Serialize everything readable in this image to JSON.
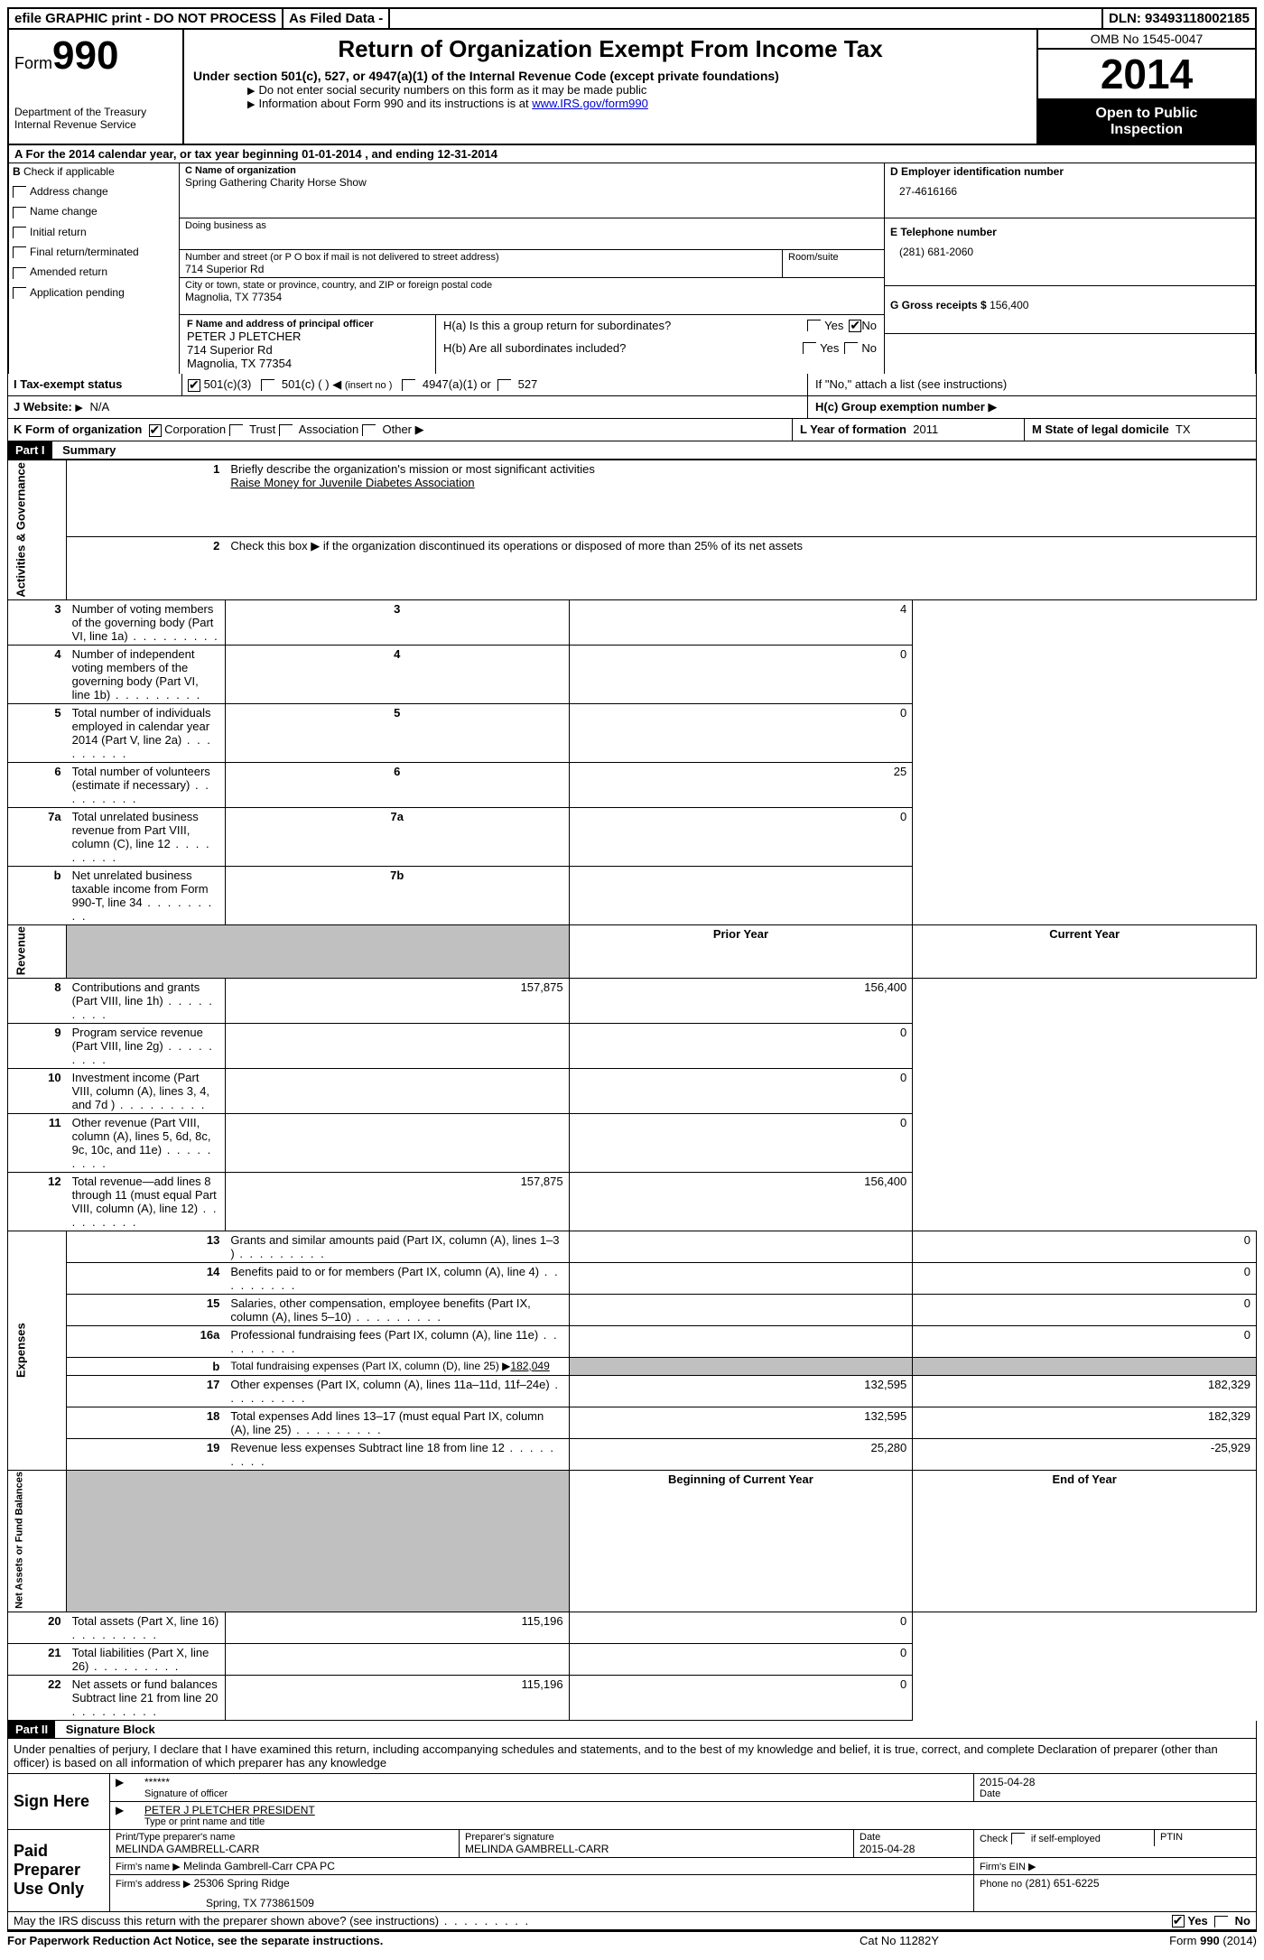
{
  "topbar": {
    "efile": "efile GRAPHIC print - DO NOT PROCESS",
    "asfiled": "As Filed Data -",
    "dln_label": "DLN:",
    "dln": "93493118002185"
  },
  "header": {
    "form_word": "Form",
    "form_num": "990",
    "dept1": "Department of the Treasury",
    "dept2": "Internal Revenue Service",
    "title": "Return of Organization Exempt From Income Tax",
    "subtitle": "Under section 501(c), 527, or 4947(a)(1) of the Internal Revenue Code (except private foundations)",
    "note1": "Do not enter social security numbers on this form as it may be made public",
    "note2_a": "Information about Form 990 and its instructions is at ",
    "note2_link": "www.IRS.gov/form990",
    "omb": "OMB No  1545-0047",
    "year": "2014",
    "inspect1": "Open to Public",
    "inspect2": "Inspection"
  },
  "lineA": {
    "text_a": "A  For the 2014 calendar year, or tax year beginning ",
    "begin": "01-01-2014",
    "text_b": "  , and ending ",
    "end": "12-31-2014"
  },
  "colB": {
    "hdr": "B",
    "check": "Check if applicable",
    "items": [
      "Address change",
      "Name change",
      "Initial return",
      "Final return/terminated",
      "Amended return",
      "Application pending"
    ]
  },
  "colC": {
    "name_lbl": "C Name of organization",
    "name": "Spring Gathering Charity Horse Show",
    "dba_lbl": "Doing business as",
    "street_lbl": "Number and street (or P O  box if mail is not delivered to street address)",
    "room_lbl": "Room/suite",
    "street": "714 Superior Rd",
    "city_lbl": "City or town, state or province, country, and ZIP or foreign postal code",
    "city": "Magnolia, TX  77354",
    "f_lbl": "F  Name and address of principal officer",
    "f_name": "PETER J PLETCHER",
    "f_street": "714 Superior Rd",
    "f_city": "Magnolia, TX  77354"
  },
  "colD": {
    "d_lbl": "D Employer identification number",
    "ein": "27-4616166",
    "e_lbl": "E Telephone number",
    "phone": "(281) 681-2060",
    "g_lbl": "G Gross receipts $",
    "gross": "156,400",
    "ha_lbl": "H(a)  Is this a group return for subordinates?",
    "hb_lbl": "H(b)  Are all subordinates included?",
    "hb_note": "If \"No,\" attach a list  (see instructions)",
    "hc_lbl": "H(c)  Group exemption number",
    "yes": "Yes",
    "no": "No"
  },
  "lineI": {
    "lbl": "I  Tax-exempt status",
    "o1": "501(c)(3)",
    "o2": "501(c) (   )",
    "o2b": "(insert no )",
    "o3": "4947(a)(1) or",
    "o4": "527"
  },
  "lineJ": {
    "lbl": "J  Website:",
    "val": "N/A"
  },
  "lineK": {
    "lbl": "K Form of organization",
    "o1": "Corporation",
    "o2": "Trust",
    "o3": "Association",
    "o4": "Other",
    "l_lbl": "L Year of formation",
    "l_val": "2011",
    "m_lbl": "M State of legal domicile",
    "m_val": "TX"
  },
  "part1": {
    "hdr": "Part I",
    "title": "Summary",
    "side_ag": "Activities & Governance",
    "side_rev": "Revenue",
    "side_exp": "Expenses",
    "side_na": "Net Assets or Fund Balances",
    "l1_lbl": "Briefly describe the organization's mission or most significant activities",
    "l1_val": "Raise Money for Juvenile Diabetes Association",
    "l2": "Check this box ▶       if the organization discontinued its operations or disposed of more than 25% of its net assets",
    "rows_ag": [
      {
        "n": "3",
        "t": "Number of voting members of the governing body (Part VI, line 1a)",
        "k": "3",
        "v": "4"
      },
      {
        "n": "4",
        "t": "Number of independent voting members of the governing body (Part VI, line 1b)",
        "k": "4",
        "v": "0"
      },
      {
        "n": "5",
        "t": "Total number of individuals employed in calendar year 2014 (Part V, line 2a)",
        "k": "5",
        "v": "0"
      },
      {
        "n": "6",
        "t": "Total number of volunteers (estimate if necessary)",
        "k": "6",
        "v": "25"
      },
      {
        "n": "7a",
        "t": "Total unrelated business revenue from Part VIII, column (C), line 12",
        "k": "7a",
        "v": "0"
      },
      {
        "n": "b",
        "t": "Net unrelated business taxable income from Form 990-T, line 34",
        "k": "7b",
        "v": ""
      }
    ],
    "py_hdr": "Prior Year",
    "cy_hdr": "Current Year",
    "rows_rev": [
      {
        "n": "8",
        "t": "Contributions and grants (Part VIII, line 1h)",
        "py": "157,875",
        "cy": "156,400"
      },
      {
        "n": "9",
        "t": "Program service revenue (Part VIII, line 2g)",
        "py": "",
        "cy": "0"
      },
      {
        "n": "10",
        "t": "Investment income (Part VIII, column (A), lines 3, 4, and 7d )",
        "py": "",
        "cy": "0"
      },
      {
        "n": "11",
        "t": "Other revenue (Part VIII, column (A), lines 5, 6d, 8c, 9c, 10c, and 11e)",
        "py": "",
        "cy": "0"
      },
      {
        "n": "12",
        "t": "Total revenue—add lines 8 through 11 (must equal Part VIII, column (A), line 12)",
        "py": "157,875",
        "cy": "156,400"
      }
    ],
    "rows_exp": [
      {
        "n": "13",
        "t": "Grants and similar amounts paid (Part IX, column (A), lines 1–3 )",
        "py": "",
        "cy": "0"
      },
      {
        "n": "14",
        "t": "Benefits paid to or for members (Part IX, column (A), line 4)",
        "py": "",
        "cy": "0"
      },
      {
        "n": "15",
        "t": "Salaries, other compensation, employee benefits (Part IX, column (A), lines 5–10)",
        "py": "",
        "cy": "0"
      },
      {
        "n": "16a",
        "t": "Professional fundraising fees (Part IX, column (A), line 11e)",
        "py": "",
        "cy": "0"
      },
      {
        "n": "b",
        "t": "Total fundraising expenses (Part IX, column (D), line 25) ▶",
        "extra": "182,049",
        "py": "shade",
        "cy": "shade"
      },
      {
        "n": "17",
        "t": "Other expenses (Part IX, column (A), lines 11a–11d, 11f–24e)",
        "py": "132,595",
        "cy": "182,329"
      },
      {
        "n": "18",
        "t": "Total expenses  Add lines 13–17 (must equal Part IX, column (A), line 25)",
        "py": "132,595",
        "cy": "182,329"
      },
      {
        "n": "19",
        "t": "Revenue less expenses  Subtract line 18 from line 12",
        "py": "25,280",
        "cy": "-25,929"
      }
    ],
    "boy_hdr": "Beginning of Current Year",
    "eoy_hdr": "End of Year",
    "rows_na": [
      {
        "n": "20",
        "t": "Total assets (Part X, line 16)",
        "py": "115,196",
        "cy": "0"
      },
      {
        "n": "21",
        "t": "Total liabilities (Part X, line 26)",
        "py": "",
        "cy": "0"
      },
      {
        "n": "22",
        "t": "Net assets or fund balances  Subtract line 21 from line 20",
        "py": "115,196",
        "cy": "0"
      }
    ]
  },
  "part2": {
    "hdr": "Part II",
    "title": "Signature Block",
    "perjury": "Under penalties of perjury, I declare that I have examined this return, including accompanying schedules and statements, and to the best of my knowledge and belief, it is true, correct, and complete  Declaration of preparer (other than officer) is based on all information of which preparer has any knowledge",
    "sign_here": "Sign Here",
    "sig_stars": "******",
    "sig_lbl": "Signature of officer",
    "date_lbl": "Date",
    "sig_date": "2015-04-28",
    "name_title": "PETER J PLETCHER PRESIDENT",
    "name_lbl": "Type or print name and title",
    "paid": "Paid Preparer Use Only",
    "prep_name_lbl": "Print/Type preparer's name",
    "prep_name": "MELINDA GAMBRELL-CARR",
    "prep_sig_lbl": "Preparer's signature",
    "prep_sig": "MELINDA GAMBRELL-CARR",
    "prep_date": "2015-04-28",
    "self_emp": "Check        if self-employed",
    "ptin": "PTIN",
    "firm_name_lbl": "Firm's name     ▶",
    "firm_name": "Melinda Gambrell-Carr CPA PC",
    "firm_ein_lbl": "Firm's EIN ▶",
    "firm_addr_lbl": "Firm's address ▶",
    "firm_addr1": "25306 Spring Ridge",
    "firm_addr2": "Spring, TX  773861509",
    "firm_phone_lbl": "Phone no",
    "firm_phone": "(281) 651-6225",
    "discuss": "May the IRS discuss this return with the preparer shown above? (see instructions)",
    "yes": "Yes",
    "no": "No"
  },
  "footer": {
    "pra": "For Paperwork Reduction Act Notice, see the separate instructions.",
    "cat": "Cat No  11282Y",
    "form": "Form 990 (2014)"
  }
}
